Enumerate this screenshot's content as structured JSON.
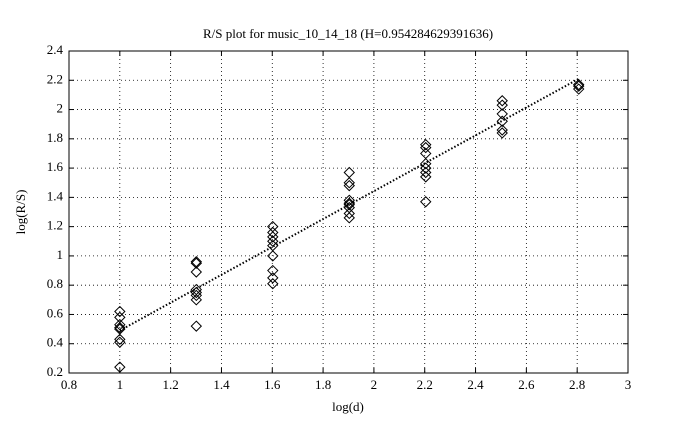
{
  "chart_data": {
    "type": "scatter",
    "title": "R/S plot for music_10_14_18 (H=0.954284629391636)",
    "xlabel": "log(d)",
    "ylabel": "log(R/S)",
    "xlim": [
      0.8,
      3
    ],
    "xticks": [
      0.8,
      1,
      1.2,
      1.4,
      1.6,
      1.8,
      2,
      2.2,
      2.4,
      2.6,
      2.8,
      3
    ],
    "ylim": [
      0.2,
      2.4
    ],
    "yticks": [
      0.2,
      0.4,
      0.6,
      0.8,
      1,
      1.2,
      1.4,
      1.6,
      1.8,
      2,
      2.2,
      2.4
    ],
    "grid": true,
    "series": [
      {
        "type": "scatter",
        "marker": "diamond",
        "color": "#000000",
        "x": [
          1,
          1,
          1,
          1,
          1,
          1,
          1,
          1,
          1.301,
          1.301,
          1.301,
          1.301,
          1.301,
          1.301,
          1.301,
          1.301,
          1.602,
          1.602,
          1.602,
          1.602,
          1.602,
          1.602,
          1.602,
          1.602,
          1.602,
          1.903,
          1.903,
          1.903,
          1.903,
          1.903,
          1.903,
          1.903,
          1.903,
          1.903,
          2.204,
          2.204,
          2.204,
          2.204,
          2.204,
          2.204,
          2.204,
          2.204,
          2.505,
          2.505,
          2.505,
          2.505,
          2.505,
          2.505,
          2.806,
          2.806,
          2.806
        ],
        "values": [
          0.62,
          0.58,
          0.53,
          0.51,
          0.5,
          0.43,
          0.41,
          0.24,
          0.96,
          0.95,
          0.89,
          0.77,
          0.75,
          0.73,
          0.7,
          0.52,
          1.2,
          1.16,
          1.13,
          1.1,
          1.07,
          1.0,
          0.9,
          0.85,
          0.81,
          1.57,
          1.5,
          1.48,
          1.38,
          1.36,
          1.35,
          1.33,
          1.29,
          1.26,
          1.76,
          1.74,
          1.7,
          1.63,
          1.6,
          1.57,
          1.54,
          1.37,
          2.06,
          2.03,
          1.97,
          1.92,
          1.86,
          1.84,
          2.17,
          2.16,
          2.14
        ]
      },
      {
        "type": "line",
        "linestyle": "dotted",
        "color": "#000000",
        "x": [
          1,
          2.806
        ],
        "values": [
          0.49,
          2.21
        ]
      }
    ]
  }
}
